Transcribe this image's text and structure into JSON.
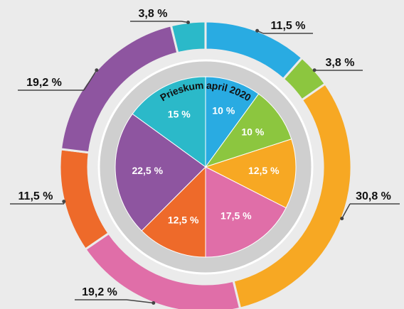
{
  "chart_data": {
    "type": "nested-pie",
    "title": "Prieskum april 2020",
    "rings": [
      {
        "values": [
          11.5,
          3.8,
          30.8,
          19.2,
          11.5,
          19.2,
          3.8
        ],
        "value_labels": [
          "11,5 %",
          "3,8 %",
          "30,8 %",
          "19,2 %",
          "11,5 %",
          "19,2 %",
          "3,8 %"
        ],
        "colors": [
          "#29abe2",
          "#8cc63f",
          "#f7a823",
          "#e06ea8",
          "#ee6a2a",
          "#8e55a0",
          "#2bb9c9"
        ]
      },
      {
        "values": [
          10,
          10,
          12.5,
          17.5,
          12.5,
          22.5,
          15
        ],
        "value_labels": [
          "10 %",
          "10 %",
          "12,5 %",
          "17,5 %",
          "12,5 %",
          "22,5 %",
          "15 %"
        ],
        "colors": [
          "#29abe2",
          "#8cc63f",
          "#f7a823",
          "#e06ea8",
          "#ee6a2a",
          "#8e55a0",
          "#2bb9c9"
        ]
      }
    ]
  }
}
